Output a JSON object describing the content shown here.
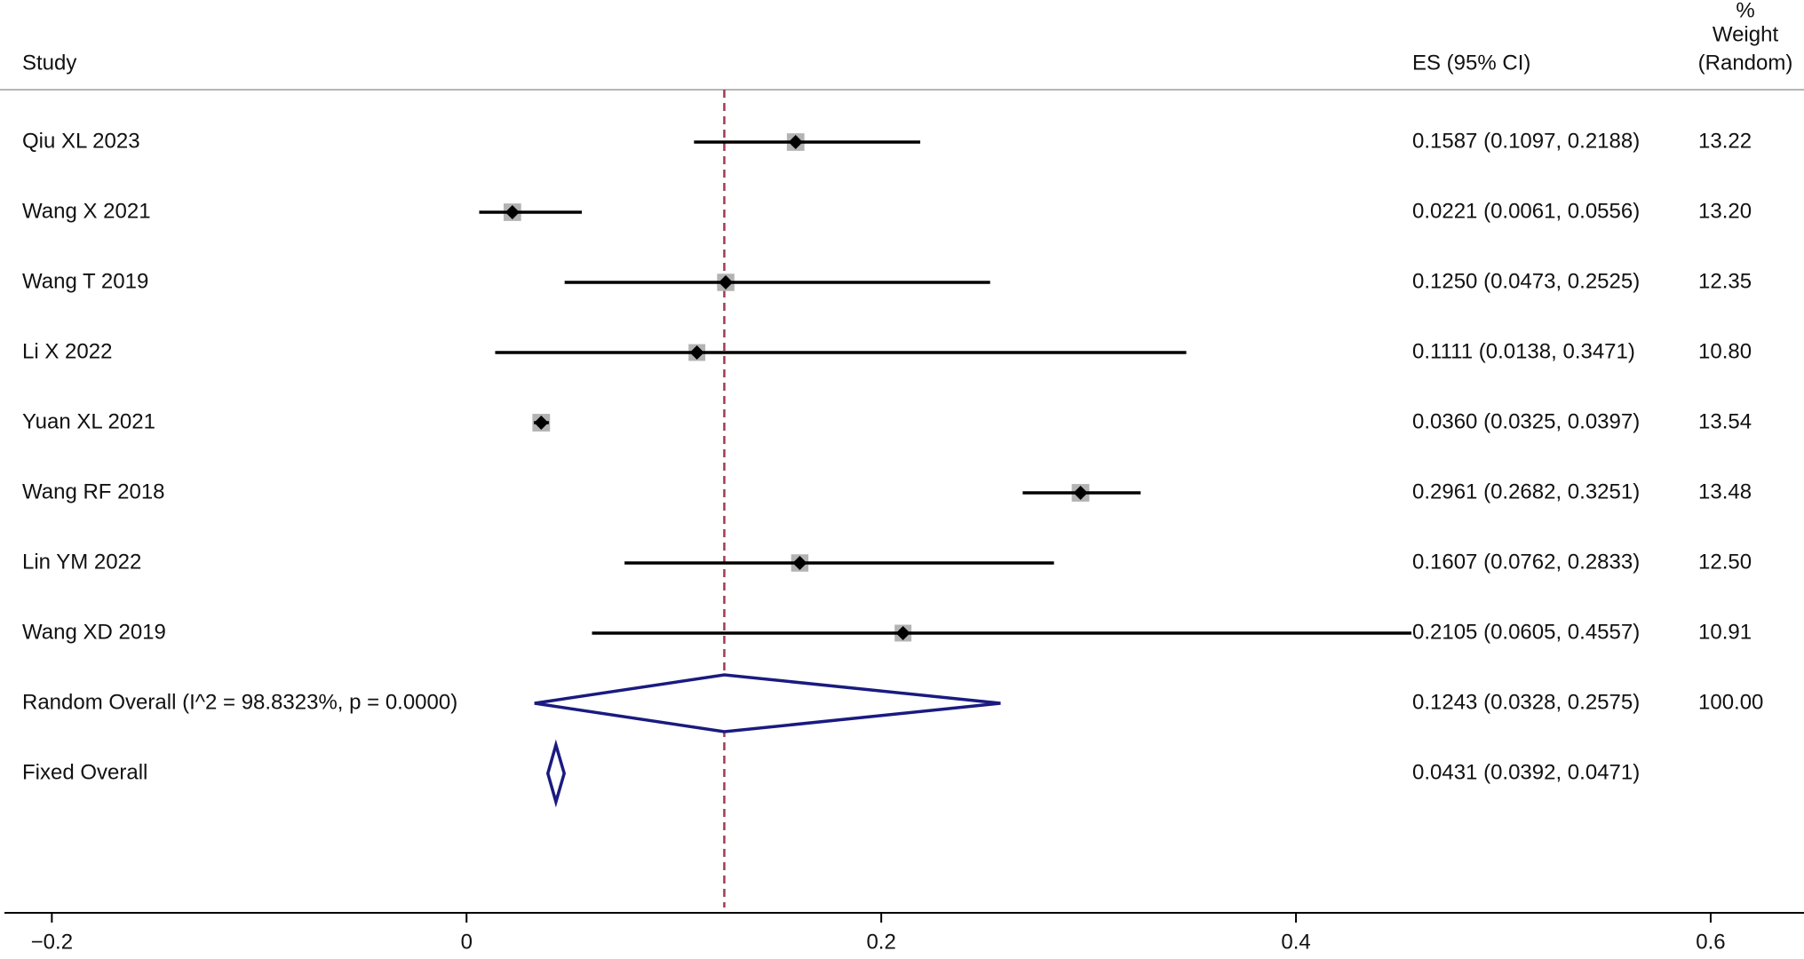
{
  "chart_data": {
    "type": "forest",
    "header": {
      "study": "Study",
      "es": "ES (95% CI)",
      "weight_lines": [
        "%",
        "Weight",
        "(Random)"
      ]
    },
    "studies": [
      {
        "label": "Qiu XL 2023",
        "es": 0.1587,
        "lo": 0.1097,
        "hi": 0.2188,
        "es_text": "0.1587 (0.1097, 0.2188)",
        "weight": 13.22,
        "weight_text": "13.22"
      },
      {
        "label": "Wang X 2021",
        "es": 0.0221,
        "lo": 0.0061,
        "hi": 0.0556,
        "es_text": "0.0221 (0.0061, 0.0556)",
        "weight": 13.2,
        "weight_text": "13.20"
      },
      {
        "label": "Wang T 2019",
        "es": 0.125,
        "lo": 0.0473,
        "hi": 0.2525,
        "es_text": "0.1250 (0.0473, 0.2525)",
        "weight": 12.35,
        "weight_text": "12.35"
      },
      {
        "label": "Li X 2022",
        "es": 0.1111,
        "lo": 0.0138,
        "hi": 0.3471,
        "es_text": "0.1111 (0.0138, 0.3471)",
        "weight": 10.8,
        "weight_text": "10.80"
      },
      {
        "label": "Yuan XL 2021",
        "es": 0.036,
        "lo": 0.0325,
        "hi": 0.0397,
        "es_text": "0.0360 (0.0325, 0.0397)",
        "weight": 13.54,
        "weight_text": "13.54"
      },
      {
        "label": "Wang RF 2018",
        "es": 0.2961,
        "lo": 0.2682,
        "hi": 0.3251,
        "es_text": "0.2961 (0.2682, 0.3251)",
        "weight": 13.48,
        "weight_text": "13.48"
      },
      {
        "label": "Lin YM 2022",
        "es": 0.1607,
        "lo": 0.0762,
        "hi": 0.2833,
        "es_text": "0.1607 (0.0762, 0.2833)",
        "weight": 12.5,
        "weight_text": "12.50"
      },
      {
        "label": "Wang XD 2019",
        "es": 0.2105,
        "lo": 0.0605,
        "hi": 0.4557,
        "es_text": "0.2105 (0.0605, 0.4557)",
        "weight": 10.91,
        "weight_text": "10.91"
      }
    ],
    "overall": [
      {
        "label": "Random Overall  (I^2 = 98.8323%, p = 0.0000)",
        "es": 0.1243,
        "lo": 0.0328,
        "hi": 0.2575,
        "es_text": "0.1243 (0.0328, 0.2575)",
        "weight_text": "100.00",
        "kind": "random"
      },
      {
        "label": "Fixed Overall",
        "es": 0.0431,
        "lo": 0.0392,
        "hi": 0.0471,
        "es_text": "0.0431 (0.0392, 0.0471)",
        "weight_text": "",
        "kind": "fixed"
      }
    ],
    "reference_line": 0.1243,
    "xlim": [
      -0.225,
      0.645
    ],
    "xticks": [
      -0.2,
      0,
      0.2,
      0.4,
      0.6
    ],
    "xtick_labels": [
      "−0.2",
      "0",
      "0.2",
      "0.4",
      "0.6"
    ],
    "colors": {
      "ci_line": "#000000",
      "point": "#000000",
      "weight_box": "#b3b3b3",
      "diamond": "#1a1a80",
      "reference_line": "#a33b52",
      "header_rule": "#b5b5b5",
      "axis": "#000000"
    }
  }
}
